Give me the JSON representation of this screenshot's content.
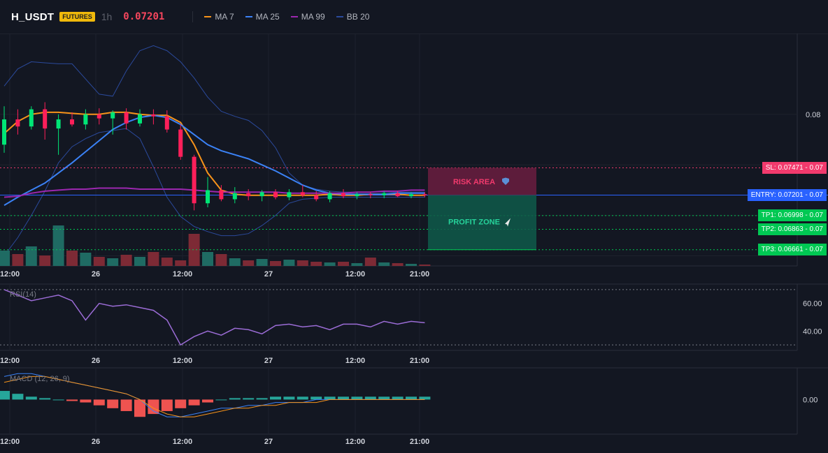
{
  "header": {
    "symbol": "H_USDT",
    "badge": "FUTURES",
    "timeframe": "1h",
    "price": "0.07201",
    "legend": [
      {
        "label": "MA 7",
        "color": "#f7931a"
      },
      {
        "label": "MA 25",
        "color": "#3b82f6"
      },
      {
        "label": "MA 99",
        "color": "#9c27b0"
      },
      {
        "label": "BB 20",
        "color": "#2b4a9c"
      }
    ]
  },
  "levels": {
    "sl": {
      "label": "SL: 0.07471",
      "value": 0.07471,
      "right": "0.07",
      "color": "#f23a6d"
    },
    "entry": {
      "label": "ENTRY: 0.07201",
      "value": 0.07201,
      "right": "0.07",
      "color": "#2962ff"
    },
    "tp1": {
      "label": "TP1: 0.06998",
      "value": 0.06998,
      "right": "0.07",
      "color": "#00c853"
    },
    "tp2": {
      "label": "TP2: 0.06863",
      "value": 0.06863,
      "right": "0.07",
      "color": "#00c853"
    },
    "tp3": {
      "label": "TP3: 0.06661",
      "value": 0.06661,
      "right": "0.07",
      "color": "#00c853"
    }
  },
  "zones": {
    "risk_label": "RISK AREA",
    "profit_label": "PROFIT ZONE"
  },
  "price_axis": {
    "ticks": [
      "0.08"
    ]
  },
  "time_labels": [
    "12:00",
    "26",
    "12:00",
    "27",
    "12:00",
    "21:00"
  ],
  "rsi": {
    "label": "RSI(14)",
    "ticks": [
      "60.00",
      "40.00"
    ],
    "color": "#9b6cd6"
  },
  "macd": {
    "label": "MACD (12, 26, 9)",
    "ticks": [
      "0.00"
    ]
  },
  "chart_data": [
    {
      "type": "candlestick",
      "title": "H_USDT 1h",
      "ylabel": "",
      "xlabel": "",
      "x_ticks": [
        "12:00",
        "26",
        "12:00",
        "27",
        "12:00",
        "21:00"
      ],
      "y_ticks": [
        "0.08"
      ],
      "series": [
        {
          "name": "MA 7",
          "values": [
            0.0781,
            0.0793,
            0.08,
            0.0802,
            0.0802,
            0.0801,
            0.08,
            0.08,
            0.0802,
            0.0802,
            0.08,
            0.0799,
            0.0799,
            0.0792,
            0.077,
            0.0742,
            0.0725,
            0.0721,
            0.072,
            0.072,
            0.072,
            0.072,
            0.072,
            0.072,
            0.0721,
            0.072,
            0.072,
            0.0721,
            0.0721,
            0.0721,
            0.072,
            0.072
          ]
        },
        {
          "name": "MA 25",
          "values": [
            0.071,
            0.0718,
            0.0725,
            0.0732,
            0.0742,
            0.0752,
            0.0763,
            0.0774,
            0.0785,
            0.0792,
            0.0797,
            0.0799,
            0.0797,
            0.079,
            0.078,
            0.077,
            0.0764,
            0.076,
            0.0756,
            0.075,
            0.0744,
            0.0737,
            0.073,
            0.0725,
            0.0722,
            0.0721,
            0.0721,
            0.0721,
            0.0721,
            0.0722,
            0.0722,
            0.0722
          ]
        },
        {
          "name": "MA 99",
          "values": [
            0.0718,
            0.0719,
            0.0722,
            0.0724,
            0.0725,
            0.0726,
            0.0726,
            0.0727,
            0.0727,
            0.0727,
            0.0726,
            0.0726,
            0.0726,
            0.0726,
            0.0725,
            0.0724,
            0.0723,
            0.0723,
            0.0723,
            0.0723,
            0.0723,
            0.0722,
            0.0722,
            0.0722,
            0.0722,
            0.0722,
            0.0723,
            0.0723,
            0.0724,
            0.0724,
            0.0725,
            0.0725
          ]
        },
        {
          "name": "BB 20 upper",
          "values": [
            0.0828,
            0.0845,
            0.0852,
            0.0851,
            0.085,
            0.085,
            0.0835,
            0.082,
            0.0818,
            0.0843,
            0.0863,
            0.0868,
            0.0863,
            0.0852,
            0.0836,
            0.0817,
            0.0803,
            0.0798,
            0.0794,
            0.0784,
            0.0767,
            0.0742,
            0.073,
            0.0726,
            0.0724,
            0.0723,
            0.0723,
            0.0723,
            0.0723,
            0.0723,
            0.0723,
            0.0723
          ]
        },
        {
          "name": "BB 20 lower",
          "values": [
            0.066,
            0.0678,
            0.07,
            0.0724,
            0.0752,
            0.0768,
            0.0776,
            0.0782,
            0.0784,
            0.0786,
            0.0776,
            0.0748,
            0.0718,
            0.0699,
            0.0689,
            0.0684,
            0.068,
            0.068,
            0.0682,
            0.069,
            0.07,
            0.0712,
            0.0716,
            0.0717,
            0.0718,
            0.0718,
            0.0718,
            0.0718,
            0.0718,
            0.0718,
            0.0718,
            0.0718
          ]
        }
      ],
      "candles": [
        {
          "o": 0.077,
          "h": 0.0808,
          "l": 0.0762,
          "c": 0.0795
        },
        {
          "o": 0.0795,
          "h": 0.0805,
          "l": 0.078,
          "c": 0.0788
        },
        {
          "o": 0.0788,
          "h": 0.0808,
          "l": 0.0785,
          "c": 0.0805
        },
        {
          "o": 0.0805,
          "h": 0.0812,
          "l": 0.0775,
          "c": 0.0786
        },
        {
          "o": 0.0786,
          "h": 0.08,
          "l": 0.076,
          "c": 0.0795
        },
        {
          "o": 0.0795,
          "h": 0.0802,
          "l": 0.0788,
          "c": 0.079
        },
        {
          "o": 0.079,
          "h": 0.0805,
          "l": 0.0785,
          "c": 0.08
        },
        {
          "o": 0.08,
          "h": 0.0806,
          "l": 0.079,
          "c": 0.0796
        },
        {
          "o": 0.0796,
          "h": 0.0804,
          "l": 0.078,
          "c": 0.0802
        },
        {
          "o": 0.0802,
          "h": 0.0806,
          "l": 0.0785,
          "c": 0.0791
        },
        {
          "o": 0.0791,
          "h": 0.0805,
          "l": 0.0788,
          "c": 0.08
        },
        {
          "o": 0.08,
          "h": 0.0805,
          "l": 0.079,
          "c": 0.0798
        },
        {
          "o": 0.0798,
          "h": 0.0804,
          "l": 0.0782,
          "c": 0.0785
        },
        {
          "o": 0.0785,
          "h": 0.079,
          "l": 0.0755,
          "c": 0.0758
        },
        {
          "o": 0.0758,
          "h": 0.076,
          "l": 0.0705,
          "c": 0.0712
        },
        {
          "o": 0.0712,
          "h": 0.0738,
          "l": 0.0708,
          "c": 0.0725
        },
        {
          "o": 0.0725,
          "h": 0.073,
          "l": 0.0714,
          "c": 0.0716
        },
        {
          "o": 0.0716,
          "h": 0.0728,
          "l": 0.0712,
          "c": 0.0722
        },
        {
          "o": 0.0722,
          "h": 0.0726,
          "l": 0.0715,
          "c": 0.0719
        },
        {
          "o": 0.0719,
          "h": 0.0725,
          "l": 0.0714,
          "c": 0.0723
        },
        {
          "o": 0.0723,
          "h": 0.0726,
          "l": 0.0716,
          "c": 0.0718
        },
        {
          "o": 0.0718,
          "h": 0.0726,
          "l": 0.0715,
          "c": 0.0723
        },
        {
          "o": 0.0723,
          "h": 0.073,
          "l": 0.0718,
          "c": 0.072
        },
        {
          "o": 0.072,
          "h": 0.0724,
          "l": 0.0714,
          "c": 0.0716
        },
        {
          "o": 0.0716,
          "h": 0.0724,
          "l": 0.0713,
          "c": 0.0722
        },
        {
          "o": 0.0722,
          "h": 0.0726,
          "l": 0.0717,
          "c": 0.0719
        },
        {
          "o": 0.0719,
          "h": 0.0723,
          "l": 0.0716,
          "c": 0.0721
        },
        {
          "o": 0.0721,
          "h": 0.0723,
          "l": 0.0717,
          "c": 0.072
        },
        {
          "o": 0.072,
          "h": 0.0724,
          "l": 0.0717,
          "c": 0.0722
        },
        {
          "o": 0.0722,
          "h": 0.0724,
          "l": 0.0718,
          "c": 0.0719
        },
        {
          "o": 0.0719,
          "h": 0.0723,
          "l": 0.0717,
          "c": 0.0721
        },
        {
          "o": 0.0721,
          "h": 0.0723,
          "l": 0.0718,
          "c": 0.072
        }
      ],
      "volume": [
        22,
        17,
        28,
        15,
        58,
        22,
        19,
        13,
        11,
        16,
        13,
        20,
        12,
        8,
        46,
        20,
        17,
        11,
        8,
        10,
        7,
        9,
        8,
        6,
        5,
        6,
        4,
        12,
        5,
        4,
        3,
        2
      ],
      "ylim": [
        0.065,
        0.088
      ]
    },
    {
      "type": "line",
      "title": "RSI(14)",
      "y_ticks": [
        "60.00",
        "40.00"
      ],
      "ylim": [
        26,
        74
      ],
      "series": [
        {
          "name": "RSI(14)",
          "values": [
            70,
            66,
            62,
            64,
            66,
            62,
            48,
            60,
            58,
            59,
            57,
            55,
            48,
            30,
            36,
            40,
            37,
            42,
            41,
            38,
            44,
            45,
            43,
            44,
            41,
            45,
            45,
            43,
            47,
            45,
            47,
            46
          ]
        }
      ]
    },
    {
      "type": "bar",
      "title": "MACD (12, 26, 9)",
      "y_ticks": [
        "0.00"
      ],
      "ylim": [
        -0.0012,
        0.0011
      ],
      "series": [
        {
          "name": "MACD",
          "values": [
            0.0008,
            0.0009,
            0.0009,
            0.0008,
            0.0007,
            0.0006,
            0.0005,
            0.0004,
            0.0003,
            0.0002,
            0.0,
            -0.0004,
            -0.0006,
            -0.0006,
            -0.0005,
            -0.0004,
            -0.0003,
            -0.0003,
            -0.0002,
            -0.0002,
            -0.0001,
            -0.0001,
            -0.0001,
            0.0,
            0.0,
            0.0,
            0.0,
            0.0,
            0.0,
            0.0,
            0.0,
            0.0
          ]
        },
        {
          "name": "Signal",
          "values": [
            0.0006,
            0.0007,
            0.0008,
            0.0008,
            0.0007,
            0.0006,
            0.0005,
            0.0004,
            0.0003,
            0.0002,
            0.0,
            -0.0003,
            -0.0005,
            -0.0006,
            -0.0006,
            -0.0005,
            -0.0004,
            -0.0003,
            -0.0003,
            -0.0002,
            -0.0002,
            -0.0001,
            -0.0001,
            -0.0001,
            0.0,
            0.0,
            0.0,
            0.0,
            0.0,
            0.0,
            0.0,
            0.0
          ]
        },
        {
          "name": "Histogram",
          "values": [
            0.0003,
            0.0002,
            0.0001,
            5e-05,
            0.0,
            -5e-05,
            -0.0001,
            -0.0002,
            -0.0003,
            -0.0004,
            -0.0006,
            -0.0005,
            -0.0004,
            -0.0003,
            -0.0002,
            -0.0001,
            0.0,
            5e-05,
            5e-05,
            5e-05,
            0.0001,
            0.0001,
            0.0001,
            0.0001,
            0.0001,
            0.0001,
            0.0001,
            0.0001,
            0.0001,
            0.0001,
            0.0001,
            0.0001
          ]
        }
      ]
    }
  ]
}
